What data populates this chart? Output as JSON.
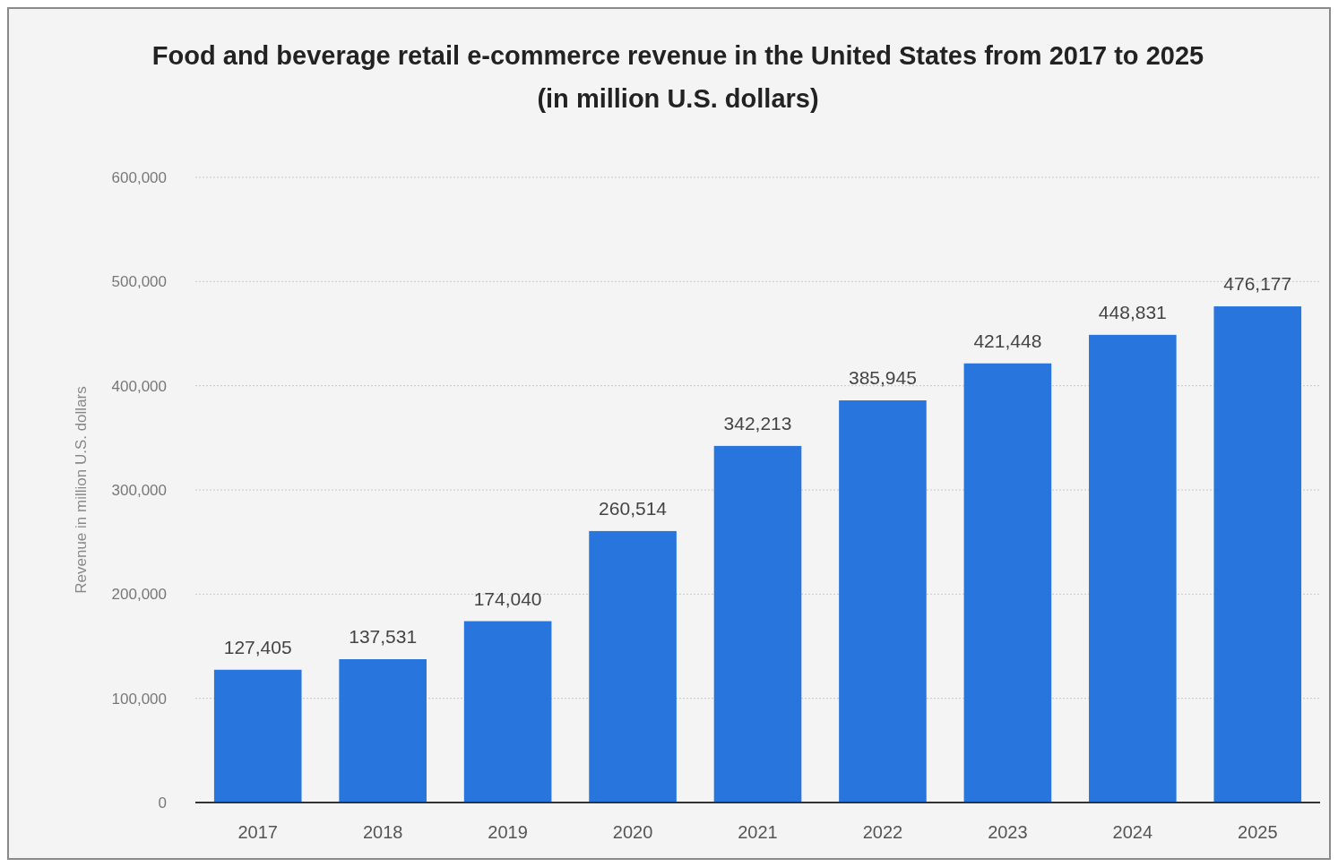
{
  "chart_data": {
    "type": "bar",
    "title": "Food and beverage retail e-commerce revenue in the United States from 2017 to 2025",
    "subtitle": "(in million U.S. dollars)",
    "ylabel": "Revenue in million U.S. dollars",
    "categories": [
      "2017",
      "2018",
      "2019",
      "2020",
      "2021",
      "2022",
      "2023",
      "2024",
      "2025"
    ],
    "values": [
      127405,
      137531,
      174040,
      260514,
      342213,
      385945,
      421448,
      448831,
      476177
    ],
    "value_labels": [
      "127,405",
      "137,531",
      "174,040",
      "260,514",
      "342,213",
      "385,945",
      "421,448",
      "448,831",
      "476,177"
    ],
    "color": "#2876dd",
    "ylim": [
      0,
      600000
    ],
    "yticks": [
      0,
      {
        "value": 100000,
        "label": "100,000"
      },
      {
        "value": 200000,
        "label": "200,000"
      },
      {
        "value": 300000,
        "label": "300,000"
      },
      {
        "value": 400000,
        "label": "400,000"
      },
      {
        "value": 500000,
        "label": "500,000"
      },
      {
        "value": 600000,
        "label": "600,000"
      }
    ],
    "grid": "y"
  }
}
